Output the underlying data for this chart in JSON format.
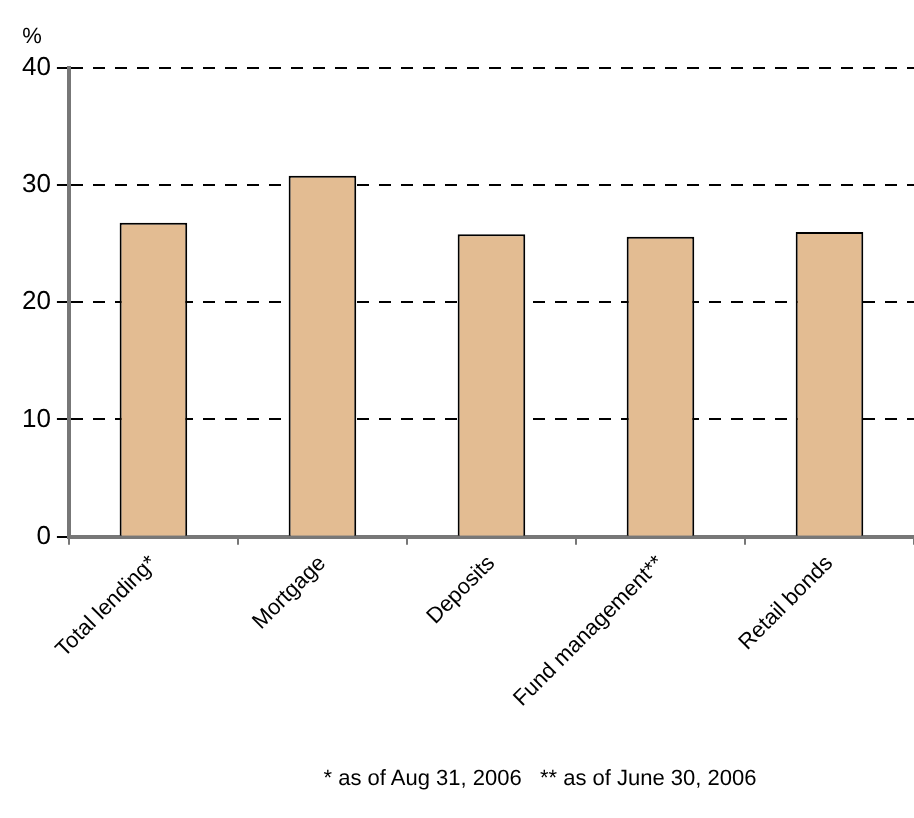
{
  "chart_data": {
    "type": "bar",
    "ylabel": "%",
    "categories": [
      "Total lending*",
      "Mortgage",
      "Deposits",
      "Fund management**",
      "Retail bonds"
    ],
    "values": [
      26.8,
      30.8,
      25.8,
      25.6,
      26.0
    ],
    "color": "#e3bc92",
    "ylim": [
      0,
      40
    ],
    "yticks": [
      0,
      10,
      20,
      30,
      40
    ],
    "grid": "y",
    "annotations": [
      "* as of Aug 31, 2006   ** as of June 30, 2006"
    ]
  }
}
